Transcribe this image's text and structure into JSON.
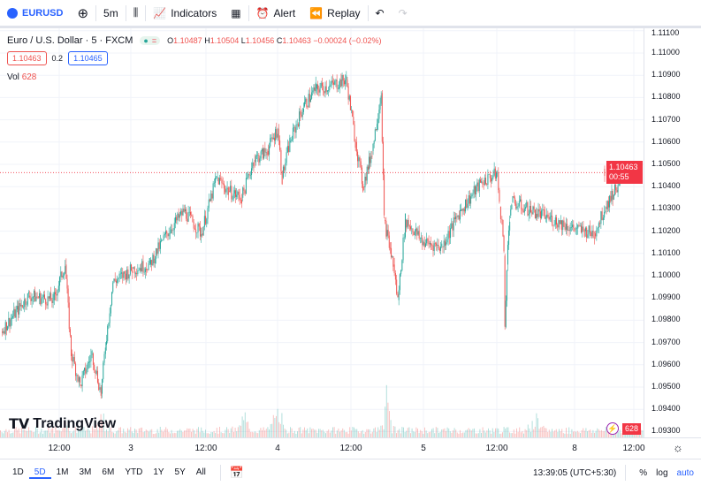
{
  "toolbar": {
    "symbol": "EURUSD",
    "interval": "5m",
    "indicators": "Indicators",
    "alert": "Alert",
    "replay": "Replay"
  },
  "legend": {
    "title": "Euro / U.S. Dollar · 5 · FXCM",
    "open": "1.10487",
    "high": "1.10504",
    "low": "1.10456",
    "close": "1.10463",
    "change": "−0.00024 (−0.02%)",
    "o_label": "O",
    "h_label": "H",
    "l_label": "L",
    "c_label": "C",
    "bid": "1.10463",
    "spread": "0.2",
    "ask": "1.10465",
    "vol_label": "Vol",
    "vol_value": "628"
  },
  "price_tag": {
    "price": "1.10463",
    "countdown": "00:55"
  },
  "volume_tag": "628",
  "logo": "TradingView",
  "colors": {
    "up": "#26a69a",
    "down": "#ef5350",
    "accent": "#2962ff",
    "tag": "#f23645"
  },
  "chart_data": {
    "type": "candlestick",
    "y_ticks": [
      "1.11100",
      "1.11000",
      "1.10900",
      "1.10800",
      "1.10700",
      "1.10600",
      "1.10500",
      "1.10400",
      "1.10300",
      "1.10200",
      "1.10100",
      "1.10000",
      "1.09900",
      "1.09800",
      "1.09700",
      "1.09600",
      "1.09500",
      "1.09400",
      "1.09300"
    ],
    "ylim": [
      1.093,
      1.111
    ],
    "x_ticks": [
      "12:00",
      "3",
      "12:00",
      "4",
      "12:00",
      "5",
      "12:00",
      "8",
      "12:00"
    ],
    "last_price": 1.10463,
    "grid": true,
    "points": [
      [
        "2 02:30",
        1.0975
      ],
      [
        "2 07:00",
        1.0991
      ],
      [
        "2 11:00",
        1.0989
      ],
      [
        "2 13:00",
        1.1005
      ],
      [
        "2 14:00",
        1.0965
      ],
      [
        "2 15:30",
        1.0951
      ],
      [
        "2 17:30",
        1.0965
      ],
      [
        "2 19:00",
        1.0947
      ],
      [
        "2 19:45",
        1.0969
      ],
      [
        "2 21:00",
        1.0997
      ],
      [
        "3 00:15",
        1.1003
      ],
      [
        "3 03:00",
        1.1005
      ],
      [
        "3 05:45",
        1.1019
      ],
      [
        "3 08:30",
        1.1029
      ],
      [
        "3 11:15",
        1.1019
      ],
      [
        "3 13:45",
        1.1044
      ],
      [
        "3 15:45",
        1.1038
      ],
      [
        "3 18:00",
        1.1035
      ],
      [
        "3 20:00",
        1.1052
      ],
      [
        "3 22:15",
        1.1056
      ],
      [
        "4 00:00",
        1.1066
      ],
      [
        "4 00:45",
        1.1044
      ],
      [
        "4 02:00",
        1.106
      ],
      [
        "4 04:15",
        1.1076
      ],
      [
        "4 06:15",
        1.1084
      ],
      [
        "4 08:30",
        1.1085
      ],
      [
        "4 11:15",
        1.1088
      ],
      [
        "4 12:45",
        1.106
      ],
      [
        "4 14:00",
        1.104
      ],
      [
        "4 15:30",
        1.1056
      ],
      [
        "4 17:00",
        1.1082
      ],
      [
        "4 17:30",
        1.1025
      ],
      [
        "4 19:00",
        1.1005
      ],
      [
        "4 19:45",
        1.0989
      ],
      [
        "4 21:00",
        1.1025
      ],
      [
        "5 00:00",
        1.1015
      ],
      [
        "5 03:00",
        1.1013
      ],
      [
        "5 06:00",
        1.1029
      ],
      [
        "5 09:30",
        1.1042
      ],
      [
        "5 12:30",
        1.1046
      ],
      [
        "5 14:00",
        1.1031
      ],
      [
        "5 16:00",
        1.1025
      ],
      [
        "5 17:30",
        1.1009
      ],
      [
        "5 18:15",
        1.0977
      ],
      [
        "5 19:45",
        1.1005
      ],
      [
        "5 22:00",
        1.1027
      ],
      [
        "5 23:30",
        1.1033
      ],
      [
        "8 00:00",
        1.1021
      ],
      [
        "8 02:00",
        1.102
      ],
      [
        "8 04:00",
        1.1019
      ],
      [
        "8 06:15",
        1.1031
      ],
      [
        "8 09:00",
        1.1042
      ],
      [
        "8 11:15",
        1.1048
      ],
      [
        "8 13:35",
        1.10463
      ]
    ]
  },
  "time_axis": {
    "ticks": [
      "12:00",
      "3",
      "12:00",
      "4",
      "12:00",
      "5",
      "12:00",
      "8",
      "12:00"
    ]
  },
  "bottom": {
    "ranges": [
      "1D",
      "5D",
      "1M",
      "3M",
      "6M",
      "YTD",
      "1Y",
      "5Y",
      "All"
    ],
    "active": "5D",
    "clock": "13:39:05 (UTC+5:30)",
    "percent": "%",
    "log": "log",
    "auto": "auto"
  }
}
